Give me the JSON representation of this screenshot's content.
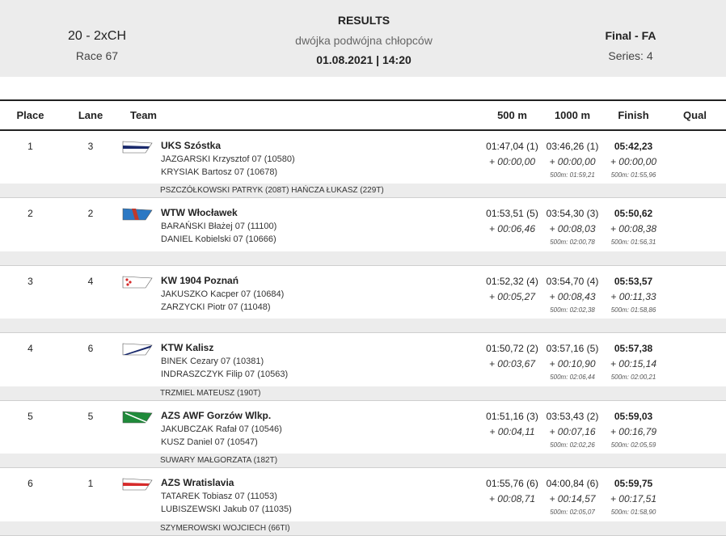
{
  "header": {
    "event_code": "20 - 2xCH",
    "race": "Race 67",
    "title": "RESULTS",
    "subtitle": "dwójka podwójna chłopców",
    "datetime": "01.08.2021 | 14:20",
    "phase": "Final - FA",
    "series": "Series: 4"
  },
  "columns": {
    "place": "Place",
    "lane": "Lane",
    "team": "Team",
    "t500": "500 m",
    "t1000": "1000 m",
    "finish": "Finish",
    "qual": "Qual"
  },
  "rows": [
    {
      "place": "1",
      "lane": "3",
      "club": "UKS Szóstka",
      "crew1": "JAZGARSKI  Krzysztof 07 (10580)",
      "crew2": "KRYSIAK  Bartosz 07 (10678)",
      "t500": "01:47,04 (1)",
      "d500": "+ 00:00,00",
      "t1000": "03:46,26 (1)",
      "d1000": "+ 00:00,00",
      "s1000": "500m: 01:59,21",
      "finish": "05:42,23",
      "dfin": "+ 00:00,00",
      "sfin": "500m: 01:55,96",
      "cox": "PSZCZÓŁKOWSKI PATRYK (208T) HAŃCZA ŁUKASZ (229T)",
      "flag": {
        "body": "#ffffff",
        "stripe": "#1a2a6c",
        "type": "stripe"
      }
    },
    {
      "place": "2",
      "lane": "2",
      "club": "WTW Włocławek",
      "crew1": "BARAŃSKI  Błażej 07 (11100)",
      "crew2": "DANIEL  Kobielski 07 (10666)",
      "t500": "01:53,51 (5)",
      "d500": "+ 00:06,46",
      "t1000": "03:54,30 (3)",
      "d1000": "+ 00:08,03",
      "s1000": "500m: 02:00,78",
      "finish": "05:50,62",
      "dfin": "+ 00:08,38",
      "sfin": "500m: 01:56,31",
      "cox": "",
      "flag": {
        "body": "#2b78c4",
        "stripe": "#c0392b",
        "type": "blue"
      }
    },
    {
      "place": "3",
      "lane": "4",
      "club": "KW 1904 Poznań",
      "crew1": "JAKUSZKO  Kacper 07 (10684)",
      "crew2": "ZARZYCKI  Piotr 07 (11048)",
      "t500": "01:52,32 (4)",
      "d500": "+ 00:05,27",
      "t1000": "03:54,70 (4)",
      "d1000": "+ 00:08,43",
      "s1000": "500m: 02:02,38",
      "finish": "05:53,57",
      "dfin": "+ 00:11,33",
      "sfin": "500m: 01:58,86",
      "cox": "",
      "flag": {
        "body": "#ffffff",
        "stripe": "#d62b2b",
        "type": "dots"
      }
    },
    {
      "place": "4",
      "lane": "6",
      "club": "KTW Kalisz",
      "crew1": "BINEK  Cezary 07 (10381)",
      "crew2": "INDRASZCZYK  Filip 07 (10563)",
      "t500": "01:50,72 (2)",
      "d500": "+ 00:03,67",
      "t1000": "03:57,16 (5)",
      "d1000": "+ 00:10,90",
      "s1000": "500m: 02:06,44",
      "finish": "05:57,38",
      "dfin": "+ 00:15,14",
      "sfin": "500m: 02:00,21",
      "cox": "TRZMIEL MATEUSZ (190T)",
      "flag": {
        "body": "#ffffff",
        "stripe": "#1a2a6c",
        "type": "diag"
      }
    },
    {
      "place": "5",
      "lane": "5",
      "club": "AZS AWF Gorzów Wlkp.",
      "crew1": "JAKUBCZAK  Rafał 07 (10546)",
      "crew2": "KUSZ  Daniel 07 (10547)",
      "t500": "01:51,16 (3)",
      "d500": "+ 00:04,11",
      "t1000": "03:53,43 (2)",
      "d1000": "+ 00:07,16",
      "s1000": "500m: 02:02,26",
      "finish": "05:59,03",
      "dfin": "+ 00:16,79",
      "sfin": "500m: 02:05,59",
      "cox": "SUWARY MAŁGORZATA (182T)",
      "flag": {
        "body": "#1f8a3a",
        "stripe": "#ffffff",
        "type": "green"
      }
    },
    {
      "place": "6",
      "lane": "1",
      "club": "AZS Wratislavia",
      "crew1": "TATAREK  Tobiasz 07 (11053)",
      "crew2": "LUBISZEWSKI  Jakub 07 (11035)",
      "t500": "01:55,76 (6)",
      "d500": "+ 00:08,71",
      "t1000": "04:00,84 (6)",
      "d1000": "+ 00:14,57",
      "s1000": "500m: 02:05,07",
      "finish": "05:59,75",
      "dfin": "+ 00:17,51",
      "sfin": "500m: 01:58,90",
      "cox": "SZYMEROWSKI WOJCIECH (66TI)",
      "flag": {
        "body": "#ffffff",
        "stripe": "#d62b2b",
        "type": "stripe"
      }
    }
  ]
}
